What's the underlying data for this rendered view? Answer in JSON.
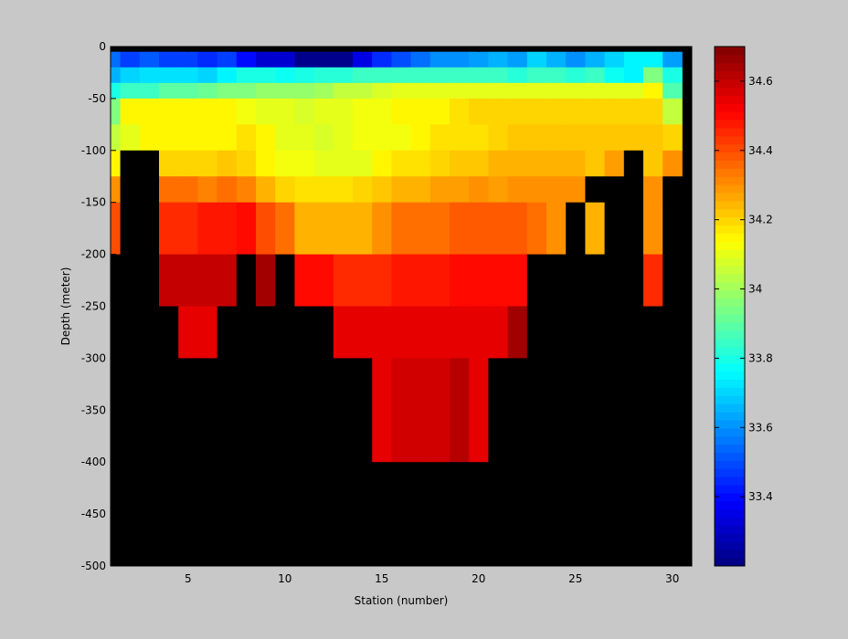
{
  "chart_data": {
    "type": "heatmap",
    "title": "",
    "xlabel": "Station (number)",
    "ylabel": "Depth (meter)",
    "xlim": [
      1,
      31
    ],
    "ylim": [
      -500,
      0
    ],
    "x_ticks": [
      5,
      10,
      15,
      20,
      25,
      30
    ],
    "y_ticks": [
      0,
      -50,
      -100,
      -150,
      -200,
      -250,
      -300,
      -350,
      -400,
      -450,
      -500
    ],
    "x": [
      1,
      2,
      3,
      4,
      5,
      6,
      7,
      8,
      9,
      10,
      11,
      12,
      13,
      14,
      15,
      16,
      17,
      18,
      19,
      20,
      21,
      22,
      23,
      24,
      25,
      26,
      27,
      28,
      29,
      30
    ],
    "y_bin_edges": [
      0,
      -5,
      -20,
      -35,
      -50,
      -75,
      -100,
      -125,
      -150,
      -200,
      -250,
      -300,
      -400,
      -500
    ],
    "null_color": "#000000",
    "colorbar": {
      "range": [
        33.2,
        34.7
      ],
      "ticks": [
        33.4,
        33.6,
        33.8,
        34,
        34.2,
        34.4,
        34.6
      ],
      "tick_labels": [
        "33.4",
        "33.6",
        "33.8",
        "34",
        "34.2",
        "34.4",
        "34.6"
      ],
      "colormap": "jet"
    },
    "z": [
      [
        null,
        null,
        null,
        null,
        null,
        null,
        null,
        null,
        null,
        null,
        null,
        null,
        null,
        null,
        null,
        null,
        null,
        null,
        null,
        null,
        null,
        null,
        null,
        null,
        null,
        null,
        null,
        null,
        null,
        null
      ],
      [
        33.55,
        33.48,
        33.52,
        33.48,
        33.48,
        33.45,
        33.48,
        33.4,
        33.32,
        33.32,
        33.22,
        33.22,
        33.22,
        33.35,
        33.45,
        33.5,
        33.55,
        33.6,
        33.6,
        33.62,
        33.65,
        33.62,
        33.7,
        33.65,
        33.6,
        33.65,
        33.7,
        33.75,
        33.75,
        33.62
      ],
      [
        33.65,
        33.7,
        33.72,
        33.72,
        33.72,
        33.7,
        33.75,
        33.8,
        33.8,
        33.78,
        33.8,
        33.82,
        33.82,
        33.85,
        33.85,
        33.85,
        33.85,
        33.85,
        33.85,
        33.85,
        33.85,
        33.82,
        33.85,
        33.85,
        33.82,
        33.85,
        33.78,
        33.75,
        33.95,
        33.8
      ],
      [
        33.8,
        33.85,
        33.85,
        33.9,
        33.9,
        33.92,
        33.95,
        33.95,
        33.98,
        33.98,
        33.98,
        34.0,
        34.05,
        34.05,
        34.08,
        34.1,
        34.1,
        34.1,
        34.1,
        34.1,
        34.1,
        34.1,
        34.1,
        34.1,
        34.1,
        34.1,
        34.1,
        34.1,
        34.15,
        33.88
      ],
      [
        33.95,
        34.15,
        34.15,
        34.15,
        34.15,
        34.15,
        34.15,
        34.12,
        34.1,
        34.1,
        34.08,
        34.1,
        34.1,
        34.12,
        34.12,
        34.15,
        34.15,
        34.15,
        34.18,
        34.2,
        34.2,
        34.2,
        34.2,
        34.2,
        34.2,
        34.2,
        34.2,
        34.2,
        34.2,
        34.05
      ],
      [
        34.05,
        34.1,
        34.15,
        34.15,
        34.15,
        34.15,
        34.15,
        34.18,
        34.15,
        34.1,
        34.1,
        34.08,
        34.1,
        34.12,
        34.12,
        34.12,
        34.15,
        34.18,
        34.18,
        34.18,
        34.2,
        34.22,
        34.22,
        34.22,
        34.22,
        34.22,
        34.22,
        34.22,
        34.22,
        34.2
      ],
      [
        34.15,
        null,
        null,
        34.2,
        34.2,
        34.2,
        34.22,
        34.2,
        34.15,
        34.12,
        34.12,
        34.1,
        34.1,
        34.1,
        34.15,
        34.18,
        34.18,
        34.2,
        34.22,
        34.22,
        34.25,
        34.25,
        34.25,
        34.25,
        34.25,
        34.22,
        34.28,
        null,
        34.22,
        34.3
      ],
      [
        34.3,
        null,
        null,
        34.35,
        34.35,
        34.32,
        34.35,
        34.32,
        34.25,
        34.2,
        34.18,
        34.18,
        34.18,
        34.2,
        34.22,
        34.25,
        34.25,
        34.28,
        34.28,
        34.3,
        34.28,
        34.3,
        34.3,
        34.3,
        34.3,
        null,
        null,
        null,
        34.3,
        null
      ],
      [
        34.4,
        null,
        null,
        34.45,
        34.45,
        34.48,
        34.48,
        34.5,
        34.4,
        34.35,
        34.25,
        34.25,
        34.25,
        34.25,
        34.3,
        34.35,
        34.35,
        34.35,
        34.38,
        34.38,
        34.38,
        34.38,
        34.35,
        34.3,
        null,
        34.25,
        null,
        null,
        34.3,
        null
      ],
      [
        null,
        null,
        null,
        34.6,
        34.6,
        34.6,
        34.6,
        null,
        34.65,
        null,
        34.5,
        34.5,
        34.45,
        34.45,
        34.45,
        34.48,
        34.48,
        34.48,
        34.5,
        34.5,
        34.5,
        34.5,
        null,
        null,
        null,
        null,
        null,
        null,
        34.45,
        null
      ],
      [
        null,
        null,
        null,
        null,
        34.55,
        34.55,
        null,
        null,
        null,
        null,
        null,
        null,
        34.55,
        34.55,
        34.55,
        34.55,
        34.55,
        34.55,
        34.55,
        34.55,
        34.55,
        34.65,
        null,
        null,
        null,
        null,
        null,
        null,
        null,
        null
      ],
      [
        null,
        null,
        null,
        null,
        null,
        null,
        null,
        null,
        null,
        null,
        null,
        null,
        null,
        null,
        34.55,
        34.58,
        34.58,
        34.58,
        34.62,
        34.55,
        null,
        null,
        null,
        null,
        null,
        null,
        null,
        null,
        null,
        null
      ],
      [
        null,
        null,
        null,
        null,
        null,
        null,
        null,
        null,
        null,
        null,
        null,
        null,
        null,
        null,
        null,
        null,
        null,
        null,
        null,
        null,
        null,
        null,
        null,
        null,
        null,
        null,
        null,
        null,
        null,
        null
      ]
    ]
  }
}
